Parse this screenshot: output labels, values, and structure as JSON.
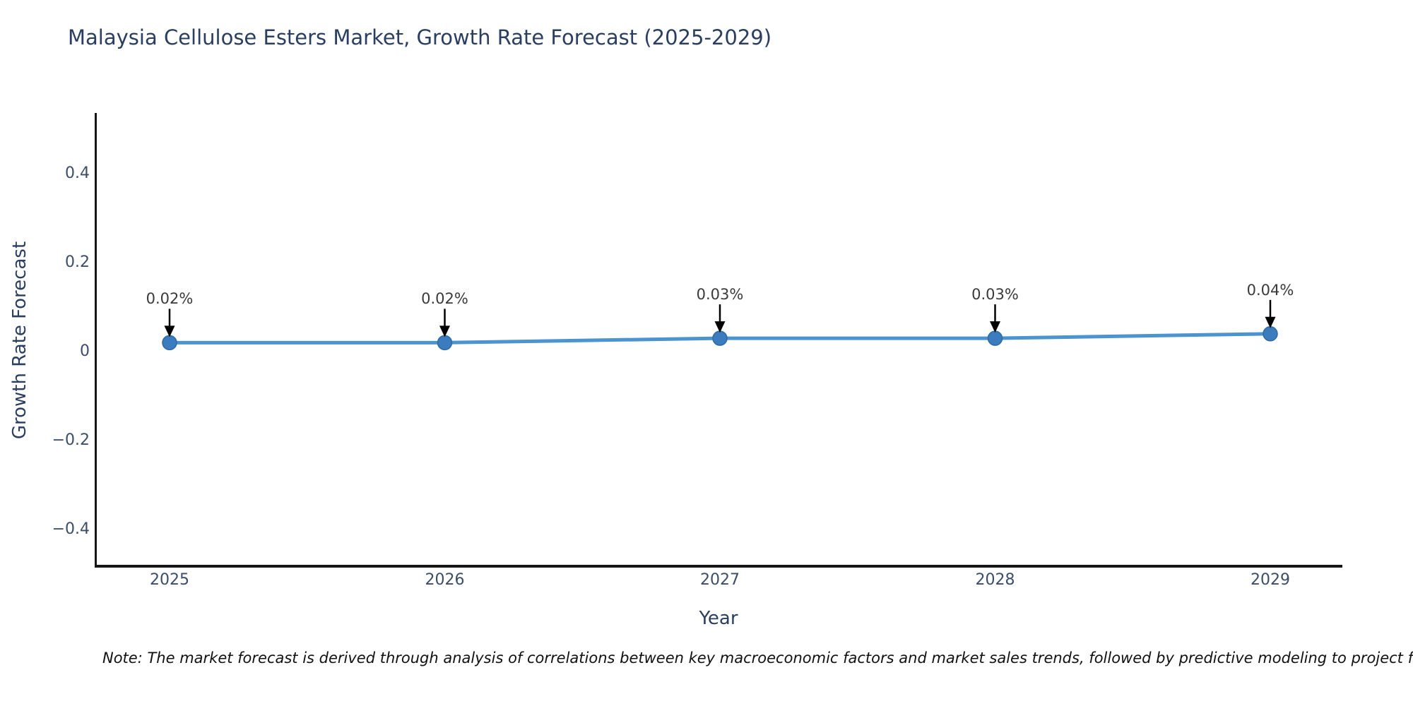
{
  "title": "Malaysia Cellulose Esters Market, Growth Rate Forecast (2025-2029)",
  "note": "Note: The market forecast is derived through analysis of correlations between key macroeconomic factors and market sales trends, followed by predictive modeling to project future sales.",
  "chart_data": {
    "type": "line",
    "title": "Malaysia Cellulose Esters Market, Growth Rate Forecast (2025-2029)",
    "xlabel": "Year",
    "ylabel": "Growth Rate Forecast",
    "categories": [
      "2025",
      "2026",
      "2027",
      "2028",
      "2029"
    ],
    "values": [
      0.02,
      0.02,
      0.03,
      0.03,
      0.04
    ],
    "point_labels": [
      "0.02%",
      "0.02%",
      "0.03%",
      "0.03%",
      "0.04%"
    ],
    "yticks": [
      {
        "value": 0.4,
        "label": "0.4"
      },
      {
        "value": 0.2,
        "label": "0.2"
      },
      {
        "value": 0.0,
        "label": "0"
      },
      {
        "value": -0.2,
        "label": "−0.2"
      },
      {
        "value": -0.4,
        "label": "−0.4"
      }
    ],
    "ylim": [
      -0.48,
      0.54
    ],
    "grid": false,
    "legend": null,
    "annotations_have_arrows": true
  },
  "colors": {
    "line": "#4b94d0",
    "marker_fill": "#3a7cbd",
    "marker_edge": "#2f6aa3",
    "arrow": "#000000",
    "axis_spine": "#161616",
    "axis_text": "#3c4d68",
    "title_text": "#2a3f5f",
    "annotation_text": "#3a3a3a"
  }
}
